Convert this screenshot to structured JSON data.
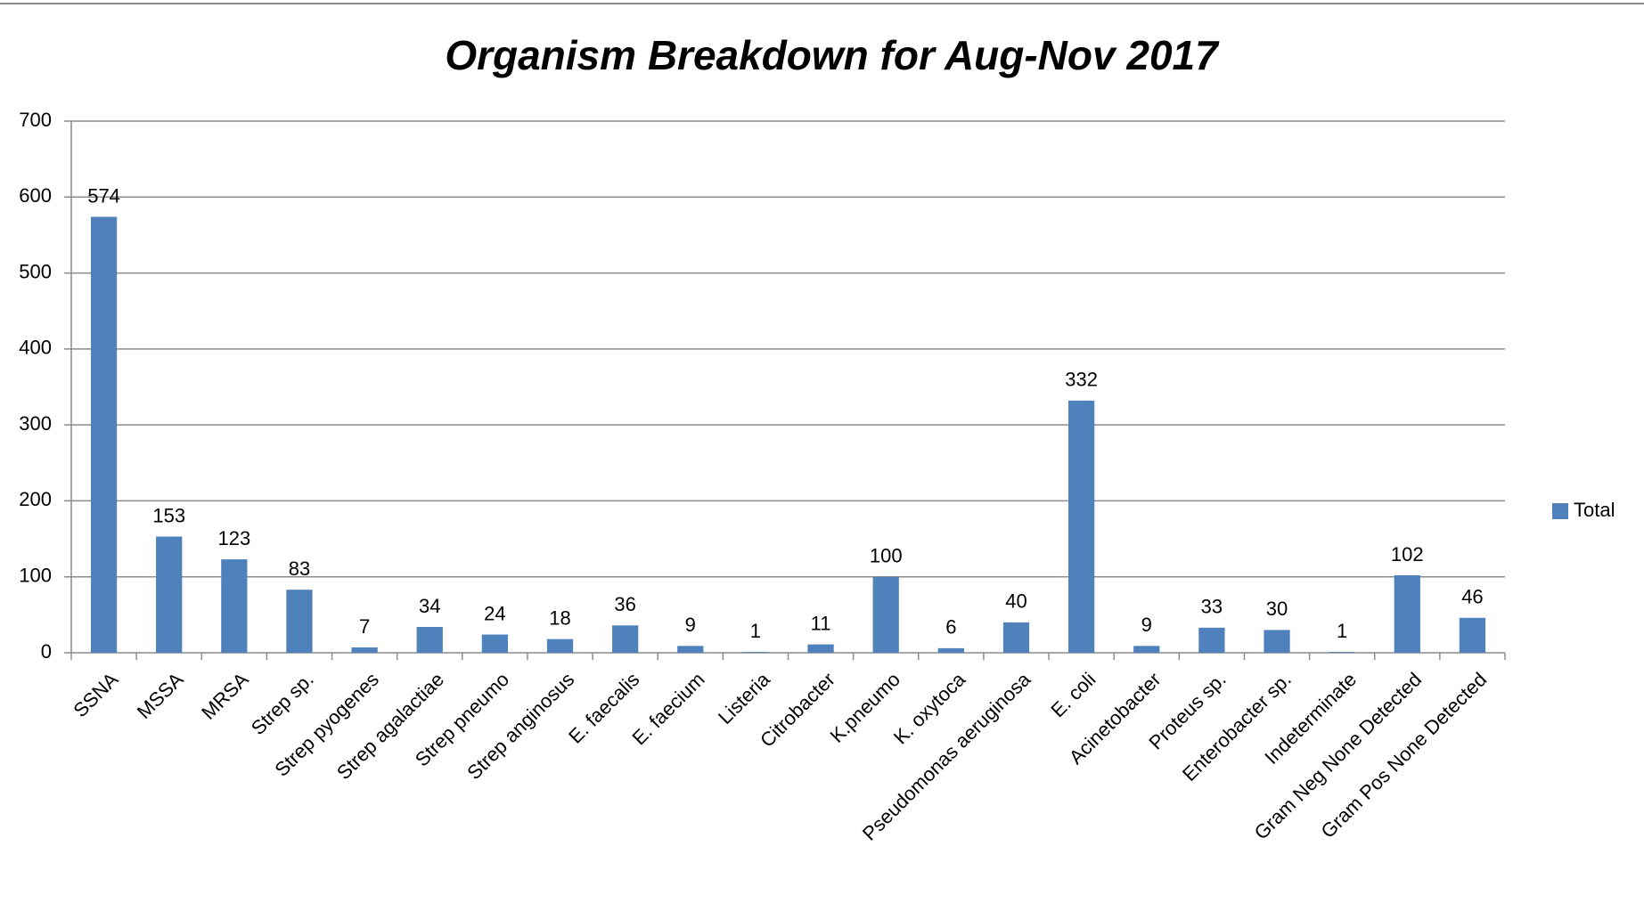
{
  "chart_data": {
    "type": "bar",
    "title": "Organism Breakdown for Aug-Nov 2017",
    "categories": [
      "SSNA",
      "MSSA",
      "MRSA",
      "Strep sp.",
      "Strep pyogenes",
      "Strep agalactiae",
      "Strep pneumo",
      "Strep anginosus",
      "E. faecalis",
      "E. faecium",
      "Listeria",
      "Citrobacter",
      "K.pneumo",
      "K. oxytoca",
      "Pseudomonas aeruginosa",
      "E. coli",
      "Acinetobacter",
      "Proteus sp.",
      "Enterobacter sp.",
      "Indeterminate",
      "Gram Neg None Detected",
      "Gram Pos None Detected"
    ],
    "series": [
      {
        "name": "Total",
        "color": "#4f81bd",
        "values": [
          574,
          153,
          123,
          83,
          7,
          34,
          24,
          18,
          36,
          9,
          1,
          11,
          100,
          6,
          40,
          332,
          9,
          33,
          30,
          1,
          102,
          46
        ]
      }
    ],
    "ylim": [
      0,
      700
    ],
    "yticks": [
      0,
      100,
      200,
      300,
      400,
      500,
      600,
      700
    ],
    "grid": true,
    "legend": "right"
  }
}
